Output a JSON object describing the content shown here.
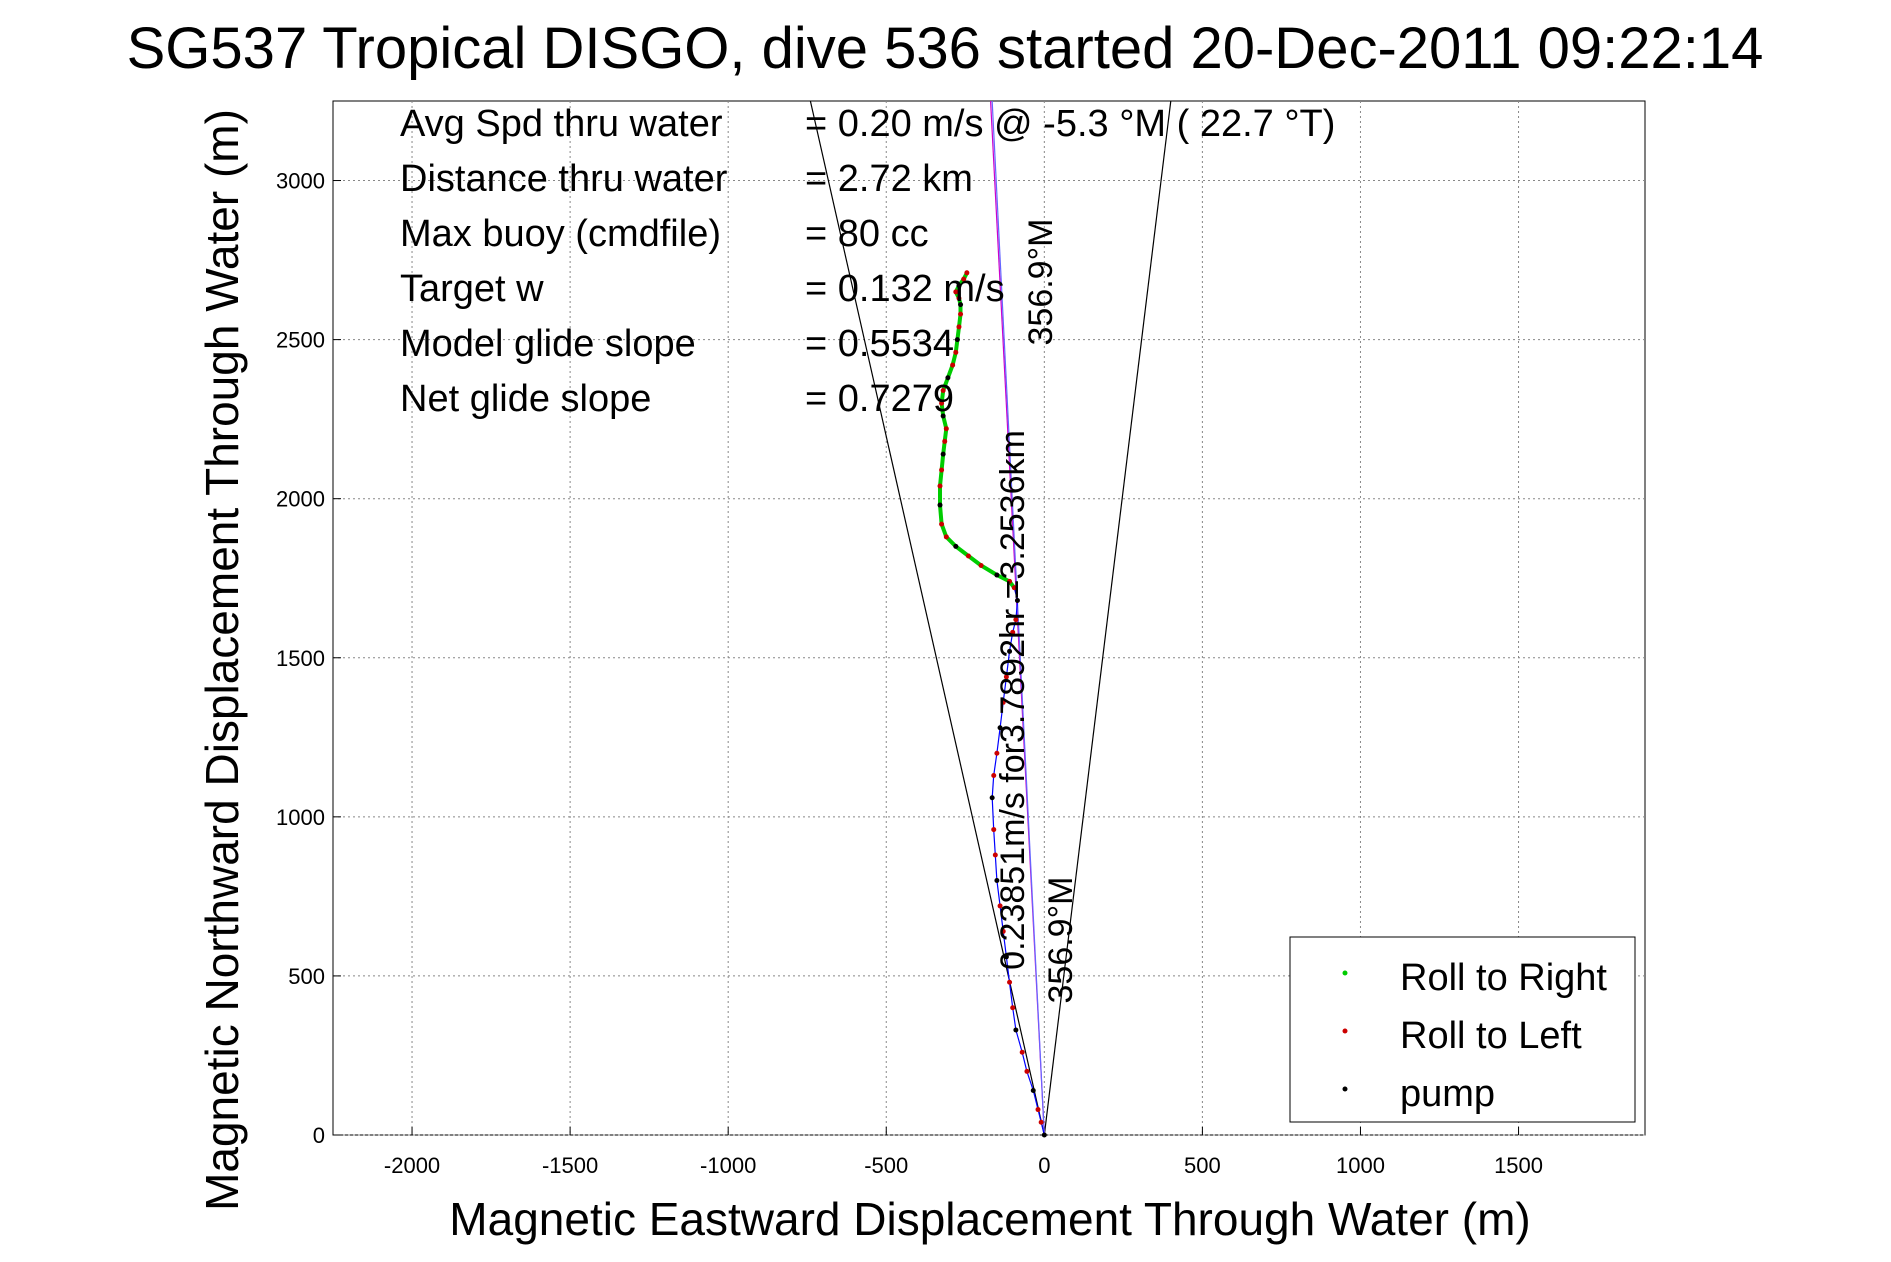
{
  "chart_data": {
    "type": "line",
    "title": "SG537 Tropical DISGO, dive 536 started 20-Dec-2011 09:22:14",
    "xlabel": "Magnetic Eastward Displacement Through Water (m)",
    "ylabel": "Magnetic Northward Displacement Through Water (m)",
    "xlim": [
      -2250,
      1900
    ],
    "ylim": [
      0,
      3250
    ],
    "xticks": [
      -2000,
      -1500,
      -1000,
      -500,
      0,
      500,
      1000,
      1500
    ],
    "yticks": [
      0,
      500,
      1000,
      1500,
      2000,
      2500,
      3000
    ],
    "grid": true,
    "info_lines": [
      {
        "label": "Avg Spd thru water",
        "value": "=  0.20 m/s @  -5.3 °M ( 22.7 °T)"
      },
      {
        "label": "Distance thru water",
        "value": "=  2.72 km"
      },
      {
        "label": "Max buoy (cmdfile)",
        "value": "= 80 cc"
      },
      {
        "label": "Target w",
        "value": "= 0.132 m/s"
      },
      {
        "label": "Model glide slope",
        "value": "= 0.5534"
      },
      {
        "label": "Net glide slope",
        "value": "= 0.7279"
      }
    ],
    "annotations": {
      "upper_heading": "356.9°M",
      "speed_text": "0.23851m/s for3.7892hr =3.2536km",
      "lower_heading": "356.9°M"
    },
    "legend": {
      "placement": "bottom-right",
      "entries": [
        {
          "name": "Roll to Right",
          "color": "#00cc00"
        },
        {
          "name": "Roll to Left",
          "color": "#cc0000"
        },
        {
          "name": "pump",
          "color": "#000000"
        }
      ]
    },
    "guide_lines": [
      {
        "from": [
          0,
          0
        ],
        "to": [
          -740,
          3250
        ],
        "color": "#000000"
      },
      {
        "from": [
          0,
          0
        ],
        "to": [
          400,
          3250
        ],
        "color": "#000000"
      },
      {
        "from": [
          0,
          0
        ],
        "to": [
          -170,
          3250
        ],
        "color": "#cc00cc"
      },
      {
        "from": [
          0,
          0
        ],
        "to": [
          -165,
          3250
        ],
        "color": "#6666ff"
      }
    ],
    "track": {
      "name": "track",
      "color": "#0000ff",
      "x": [
        0,
        -10,
        -20,
        -35,
        -55,
        -70,
        -90,
        -100,
        -110,
        -120,
        -130,
        -140,
        -150,
        -155,
        -160,
        -165,
        -160,
        -150,
        -140,
        -130,
        -120,
        -110,
        -100,
        -90,
        -85,
        -95,
        -110,
        -150,
        -200,
        -240,
        -280,
        -310,
        -325,
        -330,
        -330,
        -325,
        -320,
        -315,
        -310,
        -320,
        -325,
        -320,
        -305,
        -290,
        -280,
        -275,
        -270,
        -265,
        -265,
        -270,
        -280,
        -270,
        -255,
        -245
      ],
      "y": [
        0,
        40,
        80,
        140,
        200,
        260,
        330,
        400,
        480,
        560,
        640,
        720,
        800,
        880,
        960,
        1060,
        1130,
        1200,
        1280,
        1360,
        1440,
        1520,
        1580,
        1620,
        1680,
        1720,
        1740,
        1760,
        1790,
        1820,
        1850,
        1880,
        1920,
        1980,
        2040,
        2090,
        2140,
        2180,
        2220,
        2260,
        2300,
        2340,
        2380,
        2420,
        2460,
        2500,
        2540,
        2580,
        2610,
        2630,
        2650,
        2670,
        2690,
        2710
      ]
    },
    "green_segment_range": [
      25,
      53
    ]
  }
}
